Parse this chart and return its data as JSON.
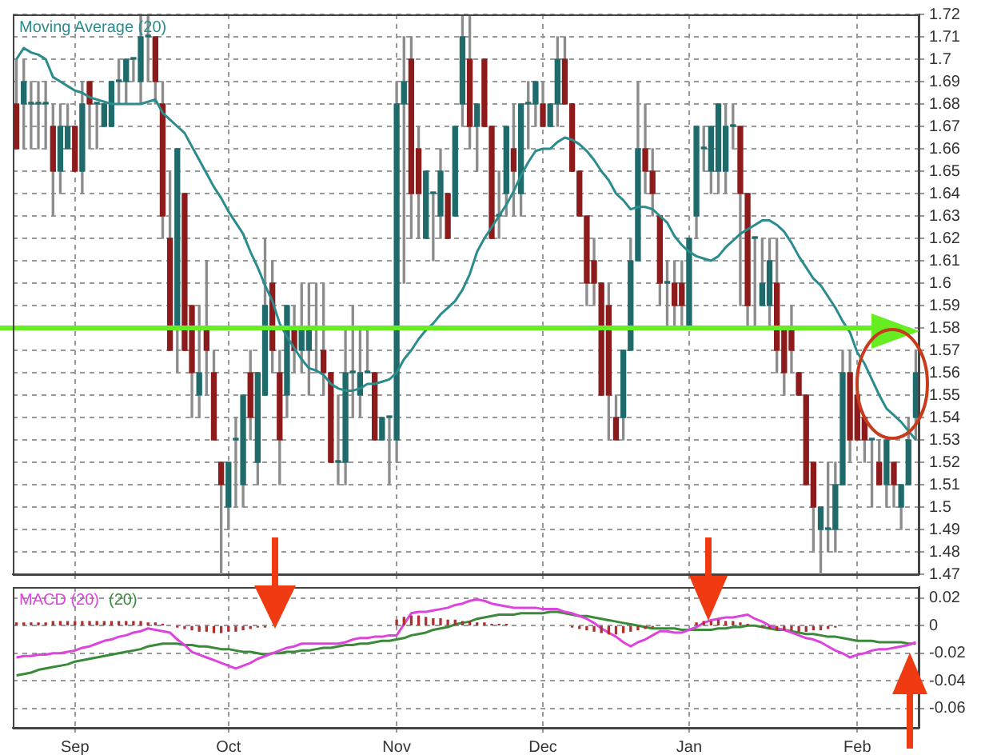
{
  "chart_data": [
    {
      "type": "candlestick",
      "categories": [
        null,
        null,
        null,
        null,
        null,
        null,
        null,
        null,
        null,
        null,
        null,
        null,
        null,
        null,
        null,
        null,
        null,
        null,
        null,
        null,
        null,
        null,
        null,
        null,
        null,
        null,
        null,
        null,
        null,
        null,
        null,
        null,
        null,
        null,
        null,
        null,
        null,
        null,
        null,
        null,
        null,
        null,
        null,
        null,
        null,
        null,
        null,
        null,
        null,
        null,
        null,
        null,
        null,
        null,
        null,
        null,
        null,
        null,
        null,
        null,
        null,
        null,
        null,
        null,
        null,
        null,
        null,
        null,
        null,
        null,
        null,
        null,
        null,
        null,
        null,
        null,
        null,
        null,
        null,
        null,
        null,
        null,
        null,
        null,
        null,
        null,
        null,
        null,
        null,
        null,
        null,
        null,
        null,
        null,
        null,
        null,
        null,
        null,
        null,
        null,
        null,
        null,
        null,
        null,
        null,
        null,
        null,
        null,
        null,
        null,
        null,
        null,
        null,
        null,
        null,
        null,
        null,
        null,
        null,
        null,
        null,
        null,
        null,
        null
      ],
      "ohlc": [
        [
          1.68,
          1.7,
          1.66,
          1.66
        ],
        [
          1.68,
          1.7,
          1.66,
          1.69
        ],
        [
          1.68,
          1.69,
          1.66,
          1.68
        ],
        [
          1.68,
          1.69,
          1.66,
          1.68
        ],
        [
          1.68,
          1.69,
          1.66,
          1.68
        ],
        [
          1.67,
          1.68,
          1.63,
          1.65
        ],
        [
          1.65,
          1.68,
          1.64,
          1.67
        ],
        [
          1.66,
          1.68,
          1.66,
          1.67
        ],
        [
          1.67,
          1.67,
          1.65,
          1.65
        ],
        [
          1.65,
          1.69,
          1.64,
          1.68
        ],
        [
          1.69,
          1.69,
          1.66,
          1.68
        ],
        [
          1.68,
          1.68,
          1.66,
          1.68
        ],
        [
          1.67,
          1.68,
          1.67,
          1.68
        ],
        [
          1.67,
          1.69,
          1.67,
          1.69
        ],
        [
          1.69,
          1.7,
          1.68,
          1.69
        ],
        [
          1.69,
          1.7,
          1.68,
          1.7
        ],
        [
          1.7,
          1.7,
          1.69,
          1.7
        ],
        [
          1.69,
          1.72,
          1.68,
          1.71
        ],
        [
          1.71,
          1.72,
          1.69,
          1.71
        ],
        [
          1.71,
          1.71,
          1.68,
          1.69
        ],
        [
          1.68,
          1.69,
          1.62,
          1.63
        ],
        [
          1.62,
          1.65,
          1.57,
          1.57
        ],
        [
          1.58,
          1.66,
          1.56,
          1.66
        ],
        [
          1.64,
          1.64,
          1.57,
          1.57
        ],
        [
          1.59,
          1.59,
          1.54,
          1.56
        ],
        [
          1.55,
          1.59,
          1.54,
          1.56
        ],
        [
          1.58,
          1.61,
          1.55,
          1.57
        ],
        [
          1.56,
          1.57,
          1.53,
          1.53
        ],
        [
          1.52,
          1.52,
          1.47,
          1.51
        ],
        [
          1.5,
          1.52,
          1.49,
          1.52
        ],
        [
          1.53,
          1.54,
          1.5,
          1.53
        ],
        [
          1.51,
          1.55,
          1.5,
          1.55
        ],
        [
          1.56,
          1.57,
          1.53,
          1.54
        ],
        [
          1.52,
          1.56,
          1.51,
          1.56
        ],
        [
          1.55,
          1.62,
          1.55,
          1.59
        ],
        [
          1.6,
          1.61,
          1.56,
          1.57
        ],
        [
          1.56,
          1.57,
          1.51,
          1.53
        ],
        [
          1.55,
          1.59,
          1.54,
          1.59
        ],
        [
          1.58,
          1.59,
          1.56,
          1.57
        ],
        [
          1.57,
          1.6,
          1.56,
          1.58
        ],
        [
          1.57,
          1.6,
          1.55,
          1.58
        ],
        [
          1.58,
          1.6,
          1.56,
          1.58
        ],
        [
          1.57,
          1.6,
          1.55,
          1.56
        ],
        [
          1.56,
          1.56,
          1.52,
          1.52
        ],
        [
          1.52,
          1.55,
          1.51,
          1.52
        ],
        [
          1.52,
          1.58,
          1.51,
          1.56
        ],
        [
          1.56,
          1.59,
          1.54,
          1.56
        ],
        [
          1.55,
          1.58,
          1.54,
          1.56
        ],
        [
          1.56,
          1.58,
          1.56,
          1.56
        ],
        [
          1.56,
          1.56,
          1.53,
          1.53
        ],
        [
          1.53,
          1.54,
          1.53,
          1.54
        ],
        [
          1.54,
          1.54,
          1.51,
          1.54
        ],
        [
          1.53,
          1.69,
          1.52,
          1.68
        ],
        [
          1.68,
          1.71,
          1.6,
          1.69
        ],
        [
          1.7,
          1.71,
          1.62,
          1.64
        ],
        [
          1.66,
          1.67,
          1.62,
          1.64
        ],
        [
          1.62,
          1.65,
          1.62,
          1.65
        ],
        [
          1.64,
          1.64,
          1.61,
          1.64
        ],
        [
          1.63,
          1.66,
          1.62,
          1.65
        ],
        [
          1.64,
          1.64,
          1.62,
          1.62
        ],
        [
          1.63,
          1.67,
          1.63,
          1.67
        ],
        [
          1.68,
          1.72,
          1.67,
          1.71
        ],
        [
          1.7,
          1.72,
          1.66,
          1.67
        ],
        [
          1.67,
          1.68,
          1.65,
          1.68
        ],
        [
          1.7,
          1.7,
          1.67,
          1.67
        ],
        [
          1.67,
          1.67,
          1.62,
          1.62
        ],
        [
          1.63,
          1.65,
          1.62,
          1.63
        ],
        [
          1.64,
          1.67,
          1.63,
          1.67
        ],
        [
          1.66,
          1.68,
          1.63,
          1.65
        ],
        [
          1.64,
          1.68,
          1.63,
          1.68
        ],
        [
          1.68,
          1.69,
          1.66,
          1.68
        ],
        [
          1.68,
          1.69,
          1.67,
          1.69
        ],
        [
          1.68,
          1.69,
          1.67,
          1.67
        ],
        [
          1.67,
          1.68,
          1.67,
          1.68
        ],
        [
          1.68,
          1.71,
          1.67,
          1.7
        ],
        [
          1.7,
          1.71,
          1.68,
          1.68
        ],
        [
          1.68,
          1.68,
          1.65,
          1.65
        ],
        [
          1.65,
          1.65,
          1.63,
          1.63
        ],
        [
          1.63,
          1.63,
          1.59,
          1.6
        ],
        [
          1.61,
          1.62,
          1.59,
          1.6
        ],
        [
          1.6,
          1.6,
          1.55,
          1.55
        ],
        [
          1.59,
          1.6,
          1.53,
          1.55
        ],
        [
          1.54,
          1.55,
          1.53,
          1.53
        ],
        [
          1.54,
          1.57,
          1.53,
          1.57
        ],
        [
          1.57,
          1.62,
          1.57,
          1.61
        ],
        [
          1.61,
          1.69,
          1.61,
          1.66
        ],
        [
          1.66,
          1.68,
          1.64,
          1.65
        ],
        [
          1.65,
          1.66,
          1.63,
          1.64
        ],
        [
          1.63,
          1.63,
          1.59,
          1.6
        ],
        [
          1.6,
          1.61,
          1.58,
          1.6
        ],
        [
          1.6,
          1.61,
          1.58,
          1.59
        ],
        [
          1.6,
          1.61,
          1.58,
          1.59
        ],
        [
          1.58,
          1.62,
          1.58,
          1.62
        ],
        [
          1.63,
          1.67,
          1.62,
          1.67
        ],
        [
          1.66,
          1.67,
          1.65,
          1.66
        ],
        [
          1.65,
          1.67,
          1.64,
          1.67
        ],
        [
          1.65,
          1.68,
          1.64,
          1.68
        ],
        [
          1.65,
          1.68,
          1.64,
          1.67
        ],
        [
          1.67,
          1.68,
          1.66,
          1.67
        ],
        [
          1.67,
          1.67,
          1.59,
          1.64
        ],
        [
          1.64,
          1.64,
          1.58,
          1.59
        ],
        [
          1.62,
          1.62,
          1.58,
          1.62
        ],
        [
          1.59,
          1.62,
          1.59,
          1.6
        ],
        [
          1.59,
          1.62,
          1.58,
          1.61
        ],
        [
          1.6,
          1.62,
          1.56,
          1.57
        ],
        [
          1.58,
          1.58,
          1.55,
          1.56
        ],
        [
          1.58,
          1.59,
          1.56,
          1.57
        ],
        [
          1.56,
          1.56,
          1.55,
          1.55
        ],
        [
          1.55,
          1.55,
          1.51,
          1.51
        ],
        [
          1.52,
          1.52,
          1.48,
          1.5
        ],
        [
          1.49,
          1.5,
          1.47,
          1.5
        ],
        [
          1.49,
          1.52,
          1.48,
          1.49
        ],
        [
          1.49,
          1.52,
          1.48,
          1.51
        ],
        [
          1.51,
          1.57,
          1.51,
          1.56
        ],
        [
          1.56,
          1.57,
          1.52,
          1.53
        ],
        [
          1.55,
          1.56,
          1.53,
          1.53
        ],
        [
          1.54,
          1.54,
          1.52,
          1.53
        ],
        [
          1.53,
          1.53,
          1.5,
          1.53
        ],
        [
          1.52,
          1.53,
          1.51,
          1.51
        ],
        [
          1.51,
          1.53,
          1.5,
          1.53
        ],
        [
          1.52,
          1.52,
          1.5,
          1.51
        ],
        [
          1.5,
          1.51,
          1.49,
          1.51
        ],
        [
          1.51,
          1.54,
          1.51,
          1.53
        ],
        [
          1.54,
          1.57,
          1.53,
          1.56
        ]
      ],
      "series": [
        {
          "name": "Moving Average (20)",
          "type": "line",
          "color": "#2a8c8c",
          "values": [
            1.7,
            1.705,
            1.703,
            1.702,
            1.7,
            1.692,
            1.69,
            1.688,
            1.686,
            1.685,
            1.683,
            1.682,
            1.681,
            1.68,
            1.68,
            1.68,
            1.68,
            1.68,
            1.681,
            1.682,
            1.676,
            1.673,
            1.67,
            1.667,
            1.661,
            1.655,
            1.649,
            1.643,
            1.638,
            1.632,
            1.627,
            1.622,
            1.614,
            1.607,
            1.599,
            1.592,
            1.582,
            1.576,
            1.571,
            1.566,
            1.562,
            1.561,
            1.559,
            1.555,
            1.553,
            1.552,
            1.552,
            1.553,
            1.555,
            1.555,
            1.556,
            1.557,
            1.56,
            1.566,
            1.57,
            1.575,
            1.579,
            1.582,
            1.586,
            1.589,
            1.592,
            1.597,
            1.604,
            1.614,
            1.62,
            1.625,
            1.63,
            1.635,
            1.641,
            1.648,
            1.654,
            1.659,
            1.66,
            1.66,
            1.663,
            1.665,
            1.664,
            1.662,
            1.659,
            1.655,
            1.65,
            1.646,
            1.64,
            1.637,
            1.633,
            1.634,
            1.634,
            1.633,
            1.63,
            1.627,
            1.621,
            1.617,
            1.614,
            1.612,
            1.611,
            1.61,
            1.612,
            1.616,
            1.619,
            1.622,
            1.624,
            1.626,
            1.628,
            1.628,
            1.626,
            1.623,
            1.618,
            1.612,
            1.607,
            1.602,
            1.599,
            1.594,
            1.589,
            1.583,
            1.578,
            1.569,
            1.564,
            1.557,
            1.55,
            1.544,
            1.541,
            1.538,
            1.534,
            1.53
          ]
        }
      ],
      "tick_labels": "y",
      "ylim": [
        1.47,
        1.72
      ],
      "yticks": [
        1.47,
        1.48,
        1.49,
        1.5,
        1.51,
        1.52,
        1.53,
        1.54,
        1.55,
        1.56,
        1.57,
        1.58,
        1.59,
        1.6,
        1.61,
        1.62,
        1.63,
        1.64,
        1.65,
        1.66,
        1.67,
        1.68,
        1.69,
        1.7,
        1.71,
        1.72
      ],
      "ref_lines": [
        {
          "axis": "y",
          "value": 1.58,
          "color": "#66ee22"
        }
      ],
      "grid": true,
      "legend": "top left"
    },
    {
      "type": "line",
      "categories": [
        null,
        null,
        null,
        null,
        null,
        null,
        null,
        null,
        "Sep",
        null,
        null,
        null,
        null,
        null,
        null,
        null,
        null,
        null,
        null,
        null,
        null,
        null,
        null,
        null,
        null,
        null,
        null,
        null,
        null,
        "Oct",
        null,
        null,
        null,
        null,
        null,
        null,
        null,
        null,
        null,
        null,
        null,
        null,
        null,
        null,
        null,
        null,
        null,
        null,
        null,
        null,
        null,
        null,
        "Nov",
        null,
        null,
        null,
        null,
        null,
        null,
        null,
        null,
        null,
        null,
        null,
        null,
        null,
        null,
        null,
        null,
        null,
        null,
        null,
        "Dec",
        null,
        null,
        null,
        null,
        null,
        null,
        null,
        null,
        null,
        null,
        null,
        null,
        null,
        null,
        null,
        null,
        null,
        null,
        null,
        "Jan",
        null,
        null,
        null,
        null,
        null,
        null,
        null,
        null,
        null,
        null,
        null,
        null,
        null,
        null,
        null,
        null,
        null,
        null,
        null,
        null,
        null,
        null,
        "Feb",
        null,
        null,
        null,
        null,
        null,
        null,
        null,
        null
      ],
      "series": [
        {
          "name": "MACD (20)",
          "color": "#dd44dd",
          "values": [
            -0.023,
            -0.022,
            -0.022,
            -0.021,
            -0.021,
            -0.02,
            -0.02,
            -0.019,
            -0.018,
            -0.016,
            -0.015,
            -0.013,
            -0.011,
            -0.01,
            -0.008,
            -0.007,
            -0.005,
            -0.004,
            -0.002,
            -0.003,
            -0.004,
            -0.005,
            -0.01,
            -0.014,
            -0.019,
            -0.021,
            -0.023,
            -0.025,
            -0.027,
            -0.029,
            -0.031,
            -0.029,
            -0.027,
            -0.024,
            -0.022,
            -0.02,
            -0.018,
            -0.016,
            -0.015,
            -0.013,
            -0.013,
            -0.013,
            -0.013,
            -0.013,
            -0.013,
            -0.012,
            -0.01,
            -0.009,
            -0.009,
            -0.008,
            -0.008,
            -0.007,
            -0.007,
            0.001,
            0.009,
            0.01,
            0.01,
            0.011,
            0.012,
            0.013,
            0.015,
            0.016,
            0.018,
            0.019,
            0.018,
            0.016,
            0.015,
            0.014,
            0.013,
            0.013,
            0.013,
            0.013,
            0.012,
            0.012,
            0.012,
            0.01,
            0.009,
            0.007,
            0.005,
            0.002,
            -0.002,
            -0.005,
            -0.008,
            -0.012,
            -0.015,
            -0.012,
            -0.01,
            -0.007,
            -0.004,
            -0.004,
            -0.005,
            -0.005,
            -0.003,
            -0.001,
            0.002,
            0.004,
            0.005,
            0.006,
            0.006,
            0.007,
            0.008,
            0.005,
            0.003,
            0.0,
            -0.002,
            -0.003,
            -0.005,
            -0.007,
            -0.009,
            -0.01,
            -0.012,
            -0.015,
            -0.018,
            -0.02,
            -0.023,
            -0.021,
            -0.02,
            -0.018,
            -0.017,
            -0.017,
            -0.016,
            -0.015,
            -0.014,
            -0.012
          ]
        },
        {
          "name": "(20)",
          "color": "#3a8a3a",
          "values": [
            -0.036,
            -0.035,
            -0.034,
            -0.032,
            -0.031,
            -0.03,
            -0.029,
            -0.028,
            -0.026,
            -0.025,
            -0.024,
            -0.023,
            -0.022,
            -0.021,
            -0.02,
            -0.019,
            -0.018,
            -0.017,
            -0.015,
            -0.014,
            -0.013,
            -0.013,
            -0.013,
            -0.014,
            -0.014,
            -0.015,
            -0.015,
            -0.016,
            -0.017,
            -0.017,
            -0.018,
            -0.019,
            -0.019,
            -0.02,
            -0.021,
            -0.02,
            -0.02,
            -0.019,
            -0.019,
            -0.018,
            -0.018,
            -0.017,
            -0.016,
            -0.016,
            -0.015,
            -0.014,
            -0.014,
            -0.013,
            -0.013,
            -0.012,
            -0.011,
            -0.011,
            -0.01,
            -0.009,
            -0.007,
            -0.006,
            -0.005,
            -0.003,
            -0.002,
            -0.001,
            0.001,
            0.002,
            0.003,
            0.005,
            0.006,
            0.007,
            0.008,
            0.008,
            0.008,
            0.009,
            0.009,
            0.009,
            0.009,
            0.01,
            0.01,
            0.009,
            0.008,
            0.007,
            0.007,
            0.006,
            0.005,
            0.004,
            0.003,
            0.002,
            0.001,
            0.0,
            -0.001,
            -0.002,
            -0.002,
            -0.002,
            -0.002,
            -0.003,
            -0.003,
            -0.003,
            -0.003,
            -0.003,
            -0.002,
            -0.002,
            -0.001,
            -0.001,
            0.0,
            0.0,
            -0.001,
            -0.002,
            -0.003,
            -0.003,
            -0.004,
            -0.005,
            -0.006,
            -0.006,
            -0.007,
            -0.008,
            -0.008,
            -0.009,
            -0.01,
            -0.011,
            -0.011,
            -0.011,
            -0.012,
            -0.012,
            -0.012,
            -0.012,
            -0.013,
            -0.013
          ]
        },
        {
          "type": "bar",
          "color": "#b03030",
          "values": [
            0.002,
            0.002,
            0.002,
            0.002,
            0.002,
            0.003,
            0.003,
            0.003,
            0.003,
            0.003,
            0.003,
            0.003,
            0.003,
            0.003,
            0.003,
            0.003,
            0.003,
            0.003,
            0.002,
            0.002,
            0.001,
            null,
            -0.001,
            -0.002,
            -0.003,
            -0.004,
            -0.004,
            -0.005,
            -0.005,
            -0.004,
            -0.004,
            -0.003,
            -0.002,
            -0.001,
            -0.001,
            null,
            null,
            null,
            null,
            null,
            null,
            null,
            null,
            null,
            null,
            null,
            null,
            null,
            null,
            null,
            null,
            null,
            0.004,
            0.006,
            0.007,
            0.007,
            0.006,
            0.005,
            0.005,
            0.004,
            0.004,
            0.003,
            0.003,
            0.002,
            0.002,
            0.001,
            0.001,
            0.001,
            null,
            null,
            null,
            null,
            null,
            null,
            null,
            null,
            -0.001,
            -0.002,
            -0.003,
            -0.004,
            -0.005,
            -0.006,
            -0.006,
            -0.005,
            -0.004,
            -0.003,
            -0.002,
            -0.001,
            null,
            null,
            null,
            null,
            null,
            0.002,
            0.003,
            0.003,
            0.004,
            0.003,
            0.003,
            0.002,
            0.001,
            null,
            -0.001,
            -0.002,
            -0.003,
            -0.003,
            -0.003,
            -0.004,
            -0.004,
            -0.003,
            -0.003,
            -0.002,
            -0.001,
            null,
            null,
            null,
            null,
            null,
            null,
            null,
            null,
            null,
            null,
            null
          ]
        }
      ],
      "ylim": [
        -0.074,
        0.028
      ],
      "yticks": [
        -0.06,
        -0.04,
        -0.02,
        0,
        0.02
      ],
      "grid": true,
      "legend": "top left"
    }
  ]
}
